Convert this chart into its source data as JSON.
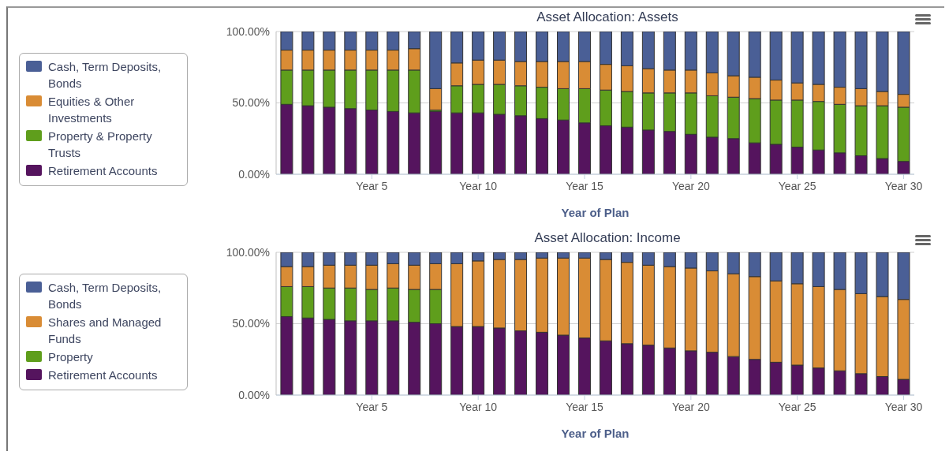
{
  "chart_data": [
    {
      "type": "bar",
      "title": "Asset Allocation: Assets",
      "xlabel": "Year of Plan",
      "stacked": true,
      "grid": "y",
      "legend": "left",
      "categories": [
        null,
        null,
        null,
        null,
        "Year 5",
        null,
        null,
        null,
        null,
        "Year 10",
        null,
        null,
        null,
        null,
        "Year 15",
        null,
        null,
        null,
        null,
        "Year 20",
        null,
        null,
        null,
        null,
        "Year 25",
        null,
        null,
        null,
        null,
        "Year 30"
      ],
      "ylim": [
        0,
        100
      ],
      "yticks": [
        {
          "value": 0,
          "label": "0.00%"
        },
        {
          "value": 50,
          "label": "50.00%"
        },
        {
          "value": 100,
          "label": "100.00%"
        }
      ],
      "series": [
        {
          "name": "Retirement Accounts",
          "color": "#55145e",
          "values": [
            49,
            48,
            47,
            46,
            45,
            44,
            43,
            44,
            43,
            43,
            42,
            41,
            39,
            38,
            36,
            34,
            33,
            31,
            30,
            28,
            26,
            25,
            22,
            21,
            19,
            17,
            15,
            13,
            11,
            9
          ]
        },
        {
          "name": "Property & Property Trusts",
          "color": "#5f9e1c",
          "values": [
            24,
            25,
            26,
            27,
            28,
            29,
            30,
            1,
            19,
            20,
            21,
            21,
            22,
            22,
            24,
            25,
            25,
            26,
            27,
            29,
            29,
            29,
            31,
            31,
            33,
            34,
            34,
            35,
            37,
            38
          ]
        },
        {
          "name": "Equities & Other Investments",
          "color": "#d98c35",
          "values": [
            14,
            14,
            14,
            14,
            14,
            14,
            15,
            15,
            16,
            17,
            17,
            17,
            18,
            19,
            19,
            18,
            18,
            17,
            16,
            16,
            16,
            15,
            15,
            14,
            12,
            12,
            12,
            12,
            10,
            9
          ]
        },
        {
          "name": "Cash, Term Deposits, Bonds",
          "color": "#4a5f96",
          "values": [
            13,
            13,
            13,
            13,
            13,
            13,
            12,
            40,
            22,
            20,
            20,
            21,
            21,
            21,
            21,
            23,
            24,
            26,
            27,
            27,
            29,
            31,
            32,
            34,
            36,
            37,
            39,
            40,
            42,
            44
          ]
        }
      ]
    },
    {
      "type": "bar",
      "title": "Asset Allocation: Income",
      "xlabel": "Year of Plan",
      "stacked": true,
      "grid": "y",
      "legend": "left",
      "categories": [
        null,
        null,
        null,
        null,
        "Year 5",
        null,
        null,
        null,
        null,
        "Year 10",
        null,
        null,
        null,
        null,
        "Year 15",
        null,
        null,
        null,
        null,
        "Year 20",
        null,
        null,
        null,
        null,
        "Year 25",
        null,
        null,
        null,
        null,
        "Year 30"
      ],
      "ylim": [
        0,
        100
      ],
      "yticks": [
        {
          "value": 0,
          "label": "0.00%"
        },
        {
          "value": 50,
          "label": "50.00%"
        },
        {
          "value": 100,
          "label": "100.00%"
        }
      ],
      "series": [
        {
          "name": "Retirement Accounts",
          "color": "#55145e",
          "values": [
            55,
            54,
            53,
            52,
            52,
            52,
            51,
            50,
            48,
            48,
            47,
            45,
            44,
            42,
            40,
            38,
            36,
            35,
            33,
            31,
            30,
            27,
            25,
            23,
            21,
            19,
            17,
            15,
            13,
            11
          ]
        },
        {
          "name": "Property",
          "color": "#5f9e1c",
          "values": [
            21,
            22,
            22,
            23,
            22,
            23,
            23,
            24,
            0,
            0,
            0,
            0,
            0,
            0,
            0,
            0,
            0,
            0,
            0,
            0,
            0,
            0,
            0,
            0,
            0,
            0,
            0,
            0,
            0,
            0
          ]
        },
        {
          "name": "Shares and Managed Funds",
          "color": "#d98c35",
          "values": [
            14,
            14,
            16,
            16,
            17,
            17,
            17,
            18,
            44,
            46,
            48,
            50,
            52,
            54,
            56,
            57,
            57,
            56,
            57,
            58,
            57,
            58,
            58,
            57,
            57,
            57,
            57,
            56,
            56,
            56
          ]
        },
        {
          "name": "Cash, Term Deposits, Bonds",
          "color": "#4a5f96",
          "values": [
            10,
            10,
            9,
            9,
            9,
            8,
            9,
            8,
            8,
            6,
            5,
            5,
            4,
            4,
            4,
            5,
            7,
            9,
            10,
            11,
            13,
            15,
            17,
            20,
            22,
            24,
            26,
            29,
            31,
            33
          ]
        }
      ]
    }
  ]
}
